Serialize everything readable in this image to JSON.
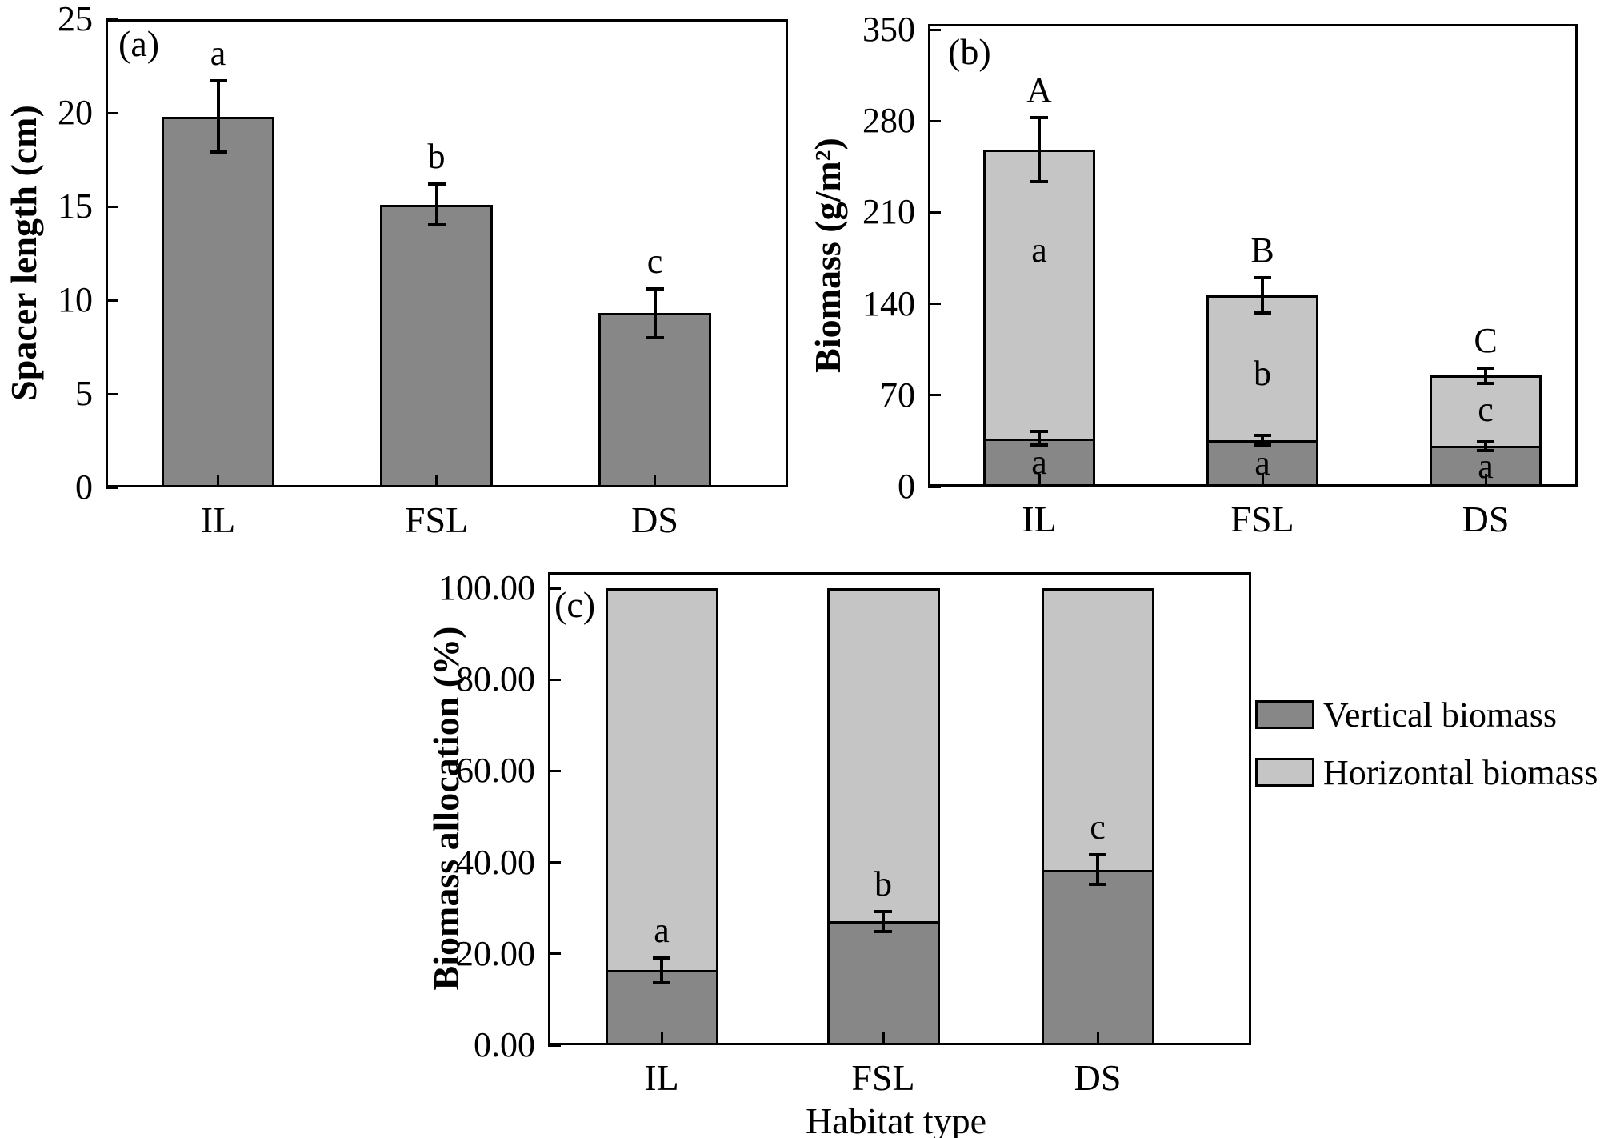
{
  "figure": {
    "background": "#ffffff",
    "colors": {
      "dark": "#878787",
      "light": "#c5c5c5",
      "line": "#000000"
    },
    "legend": {
      "position": "right-of-panel-c",
      "items": [
        {
          "label": "Vertical biomass",
          "color_key": "dark"
        },
        {
          "label": "Horizontal biomass",
          "color_key": "light"
        }
      ]
    }
  },
  "chart_data": [
    {
      "id": "a",
      "type": "bar",
      "panel_label": "(a)",
      "ylabel": "Spacer length (cm)",
      "xlabel": "",
      "ylim": [
        0,
        25
      ],
      "yticks": [
        0,
        5,
        10,
        15,
        20,
        25
      ],
      "ytick_labels": [
        "0",
        "5",
        "10",
        "15",
        "20",
        "25"
      ],
      "categories": [
        "IL",
        "FSL",
        "DS"
      ],
      "values": [
        19.8,
        15.1,
        9.3
      ],
      "errors": [
        1.9,
        1.1,
        1.3
      ],
      "sig_letters": [
        "a",
        "b",
        "c"
      ],
      "bar_color_key": "dark",
      "grid": false
    },
    {
      "id": "b",
      "type": "stacked-bar",
      "panel_label": "(b)",
      "ylabel": "Biomass (g/m²)",
      "xlabel": "",
      "ylim": [
        0,
        350
      ],
      "yticks": [
        0,
        70,
        140,
        210,
        280,
        350
      ],
      "ytick_labels": [
        "0",
        "70",
        "140",
        "210",
        "280",
        "350"
      ],
      "categories": [
        "IL",
        "FSL",
        "DS"
      ],
      "series": [
        {
          "name": "Vertical biomass",
          "color_key": "dark",
          "values": [
            37,
            35.5,
            31
          ],
          "errors": [
            5,
            3.5,
            3.5
          ],
          "sig_letters": [
            "a",
            "a",
            "a"
          ]
        },
        {
          "name": "Horizontal biomass",
          "color_key": "light",
          "values": [
            221,
            111,
            54
          ],
          "sig_letters": [
            "a",
            "b",
            "c"
          ],
          "letter_y": [
            181,
            86.5,
            59
          ]
        }
      ],
      "totals": [
        258,
        146.5,
        85
      ],
      "total_errors": [
        24.5,
        13.5,
        6
      ],
      "total_sig_letters": [
        "A",
        "B",
        "C"
      ],
      "grid": false
    },
    {
      "id": "c",
      "type": "stacked-bar",
      "panel_label": "(c)",
      "ylabel": "Biomass allocation (%)",
      "xlabel": "Habitat type",
      "ylim": [
        0,
        100
      ],
      "yticks": [
        0,
        20,
        40,
        60,
        80,
        100
      ],
      "ytick_labels": [
        "0.00",
        "20.00",
        "40.00",
        "60.00",
        "80.00",
        "100.00"
      ],
      "categories": [
        "IL",
        "FSL",
        "DS"
      ],
      "series": [
        {
          "name": "Vertical biomass",
          "color_key": "dark",
          "values": [
            16.4,
            27.1,
            38.4
          ],
          "errors": [
            2.7,
            2.2,
            3.2
          ],
          "sig_letters": [
            "a",
            "b",
            "c"
          ],
          "letters_above": true
        },
        {
          "name": "Horizontal biomass",
          "color_key": "light",
          "values": [
            83.6,
            72.9,
            61.6
          ]
        }
      ],
      "grid": false
    }
  ]
}
